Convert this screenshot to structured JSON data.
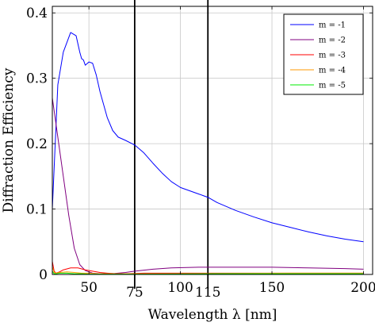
{
  "chart_data": {
    "type": "line",
    "xlabel": "Wavelength λ [nm]",
    "ylabel": "Diffraction Efficiency",
    "xlim": [
      30,
      205
    ],
    "ylim": [
      0,
      0.41
    ],
    "grid": true,
    "legend_position": "top-right",
    "x_ticks": [
      {
        "value": 50,
        "label": "50",
        "row": "upper"
      },
      {
        "value": 75,
        "label": "75",
        "row": "lower"
      },
      {
        "value": 100,
        "label": "100",
        "row": "upper"
      },
      {
        "value": 115,
        "label": "115",
        "row": "lower"
      },
      {
        "value": 150,
        "label": "150",
        "row": "upper"
      },
      {
        "value": 200,
        "label": "200",
        "row": "upper"
      }
    ],
    "y_ticks": [
      {
        "value": 0,
        "label": "0"
      },
      {
        "value": 0.1,
        "label": "0.1"
      },
      {
        "value": 0.2,
        "label": "0.2"
      },
      {
        "value": 0.3,
        "label": "0.3"
      },
      {
        "value": 0.4,
        "label": "0.4"
      }
    ],
    "vertical_lines": [
      75,
      115
    ],
    "series": [
      {
        "name": "m = -1",
        "color": "#0000ff",
        "x": [
          30,
          33,
          36,
          40,
          43,
          45,
          46,
          47,
          48,
          50,
          52,
          54,
          56,
          58,
          60,
          63,
          66,
          70,
          75,
          80,
          85,
          90,
          95,
          100,
          110,
          115,
          120,
          130,
          140,
          150,
          160,
          170,
          180,
          190,
          200
        ],
        "y": [
          0.1,
          0.29,
          0.34,
          0.37,
          0.365,
          0.34,
          0.33,
          0.328,
          0.32,
          0.325,
          0.323,
          0.305,
          0.28,
          0.26,
          0.24,
          0.22,
          0.21,
          0.205,
          0.198,
          0.186,
          0.17,
          0.155,
          0.142,
          0.133,
          0.123,
          0.118,
          0.11,
          0.098,
          0.088,
          0.079,
          0.072,
          0.065,
          0.059,
          0.054,
          0.05
        ]
      },
      {
        "name": "m = -2",
        "color": "#800080",
        "x": [
          30,
          33,
          36,
          39,
          42,
          45,
          48,
          52,
          56,
          60,
          64,
          70,
          75,
          85,
          95,
          110,
          130,
          150,
          170,
          190,
          200
        ],
        "y": [
          0.27,
          0.21,
          0.15,
          0.09,
          0.04,
          0.015,
          0.006,
          0.002,
          0.001,
          0.001,
          0.0015,
          0.003,
          0.005,
          0.008,
          0.01,
          0.011,
          0.011,
          0.011,
          0.01,
          0.009,
          0.008
        ]
      },
      {
        "name": "m = -3",
        "color": "#ff0000",
        "x": [
          30,
          31,
          32,
          34,
          36,
          40,
          44,
          48,
          52,
          56,
          60,
          65,
          70,
          80,
          100,
          130,
          160,
          200
        ],
        "y": [
          0.02,
          0.005,
          0.002,
          0.004,
          0.007,
          0.01,
          0.01,
          0.007,
          0.005,
          0.003,
          0.002,
          0.001,
          0.001,
          0.002,
          0.002,
          0.002,
          0.002,
          0.002
        ]
      },
      {
        "name": "m = -4",
        "color": "#ff9900",
        "x": [
          30,
          31,
          32,
          34,
          38,
          42,
          46,
          50,
          55,
          60,
          70,
          90,
          120,
          160,
          200
        ],
        "y": [
          0.012,
          0.003,
          0.002,
          0.003,
          0.004,
          0.003,
          0.002,
          0.002,
          0.001,
          0.001,
          0.001,
          0.001,
          0.0015,
          0.002,
          0.002
        ]
      },
      {
        "name": "m = -5",
        "color": "#00ee00",
        "x": [
          30,
          31,
          32,
          34,
          38,
          42,
          46,
          50,
          60,
          80,
          120,
          160,
          200
        ],
        "y": [
          0.005,
          0.001,
          0.001,
          0.002,
          0.002,
          0.001,
          0.001,
          0.0005,
          0.0005,
          0.0005,
          0.001,
          0.001,
          0.001
        ]
      }
    ]
  }
}
